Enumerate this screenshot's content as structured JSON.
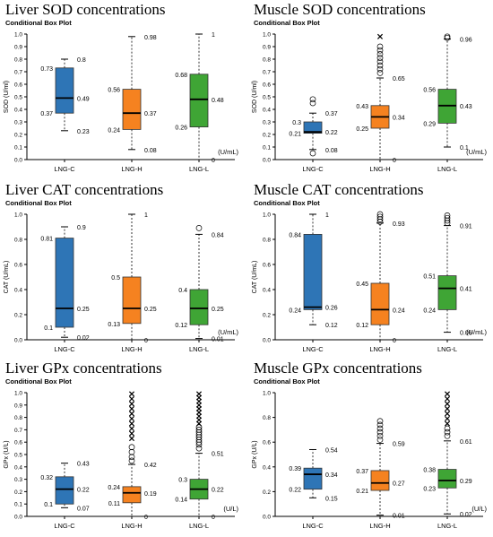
{
  "colors": {
    "LNG-C": "#2e75b6",
    "LNG-H": "#f58220",
    "LNG-L": "#3fa535"
  },
  "chart_data": [
    {
      "type": "boxplot",
      "title": "Liver SOD concentrations",
      "subtitle": "Conditional Box Plot",
      "ylabel": "SOD (U/ml)",
      "unit_label": "(U/mL)",
      "ylim": [
        0,
        1.0
      ],
      "yticks": [
        "0.0",
        "0.1",
        "0.2",
        "0.3",
        "0.4",
        "0.5",
        "0.6",
        "0.7",
        "0.8",
        "0.9",
        "1.0"
      ],
      "categories": [
        "LNG-C",
        "LNG-H",
        "LNG-L"
      ],
      "boxes": [
        {
          "q1": 0.37,
          "median": 0.49,
          "q3": 0.73,
          "whisker_low": 0.23,
          "whisker_high": 0.8,
          "outliers_o": [],
          "outliers_x": [],
          "labels": {
            "q1": "0.37",
            "median": "0.49",
            "q3": "0.73",
            "low": "0.23",
            "high": "0.8"
          }
        },
        {
          "q1": 0.24,
          "median": 0.37,
          "q3": 0.56,
          "whisker_low": 0.08,
          "whisker_high": 0.98,
          "outliers_o": [],
          "outliers_x": [],
          "labels": {
            "q1": "0.24",
            "median": "0.37",
            "q3": "0.56",
            "low": "0.08",
            "high": "0.98"
          }
        },
        {
          "q1": 0.26,
          "median": 0.48,
          "q3": 0.68,
          "whisker_low": 0.0,
          "whisker_high": 1.0,
          "outliers_o": [],
          "outliers_x": [],
          "labels": {
            "q1": "0.26",
            "median": "0.48",
            "q3": "0.68",
            "low": "0",
            "high": "1"
          }
        }
      ]
    },
    {
      "type": "boxplot",
      "title": "Muscle SOD concentrations",
      "subtitle": "Conditional Box Plot",
      "ylabel": "SOD (U/ml)",
      "unit_label": "(U/mL)",
      "ylim": [
        0,
        1.0
      ],
      "yticks": [
        "0.0",
        "0.1",
        "0.2",
        "0.3",
        "0.4",
        "0.5",
        "0.6",
        "0.7",
        "0.8",
        "0.9",
        "1.0"
      ],
      "categories": [
        "LNG-C",
        "LNG-H",
        "LNG-L"
      ],
      "boxes": [
        {
          "q1": 0.21,
          "median": 0.22,
          "q3": 0.3,
          "whisker_low": 0.08,
          "whisker_high": 0.37,
          "outliers_o": [
            0.05,
            0.45,
            0.48
          ],
          "outliers_x": [],
          "labels": {
            "q1": "0.21",
            "median": "0.22",
            "q3": "0.3",
            "low": "0.08",
            "high": "0.37"
          }
        },
        {
          "q1": 0.25,
          "median": 0.34,
          "q3": 0.43,
          "whisker_low": 0.0,
          "whisker_high": 0.65,
          "outliers_o": [
            0.69,
            0.72,
            0.75,
            0.78,
            0.81,
            0.84,
            0.87,
            0.9
          ],
          "outliers_x": [
            0.98
          ],
          "labels": {
            "q1": "0.25",
            "median": "0.34",
            "q3": "0.43",
            "low": "0",
            "high": "0.65"
          }
        },
        {
          "q1": 0.29,
          "median": 0.43,
          "q3": 0.56,
          "whisker_low": 0.1,
          "whisker_high": 0.96,
          "outliers_o": [
            0.97,
            0.98
          ],
          "outliers_x": [],
          "labels": {
            "q1": "0.29",
            "median": "0.43",
            "q3": "0.56",
            "low": "0.1",
            "high": "0.96"
          }
        }
      ]
    },
    {
      "type": "boxplot",
      "title": "Liver CAT concentrations",
      "subtitle": "Conditional Box Plot",
      "ylabel": "CAT (U/mL)",
      "unit_label": "(U/mL)",
      "ylim": [
        0,
        1.0
      ],
      "yticks": [
        "0.0",
        "0.2",
        "0.4",
        "0.6",
        "0.8",
        "1.0"
      ],
      "categories": [
        "LNG-C",
        "LNG-H",
        "LNG-L"
      ],
      "boxes": [
        {
          "q1": 0.1,
          "median": 0.25,
          "q3": 0.81,
          "whisker_low": 0.02,
          "whisker_high": 0.9,
          "outliers_o": [],
          "outliers_x": [],
          "labels": {
            "q1": "0.1",
            "median": "0.25",
            "q3": "0.81",
            "low": "0.02",
            "high": "0.9"
          }
        },
        {
          "q1": 0.13,
          "median": 0.25,
          "q3": 0.5,
          "whisker_low": 0.0,
          "whisker_high": 1.0,
          "outliers_o": [],
          "outliers_x": [],
          "labels": {
            "q1": "0.13",
            "median": "0.25",
            "q3": "0.5",
            "low": "0",
            "high": "1"
          }
        },
        {
          "q1": 0.12,
          "median": 0.25,
          "q3": 0.4,
          "whisker_low": 0.01,
          "whisker_high": 0.84,
          "outliers_o": [
            0.89
          ],
          "outliers_x": [],
          "labels": {
            "q1": "0.12",
            "median": "0.25",
            "q3": "0.4",
            "low": "0.01",
            "high": "0.84"
          }
        }
      ]
    },
    {
      "type": "boxplot",
      "title": "Muscle CAT concentrations",
      "subtitle": "Conditional Box Plot",
      "ylabel": "CAT (U/mL)",
      "unit_label": "(U/mL)",
      "ylim": [
        0,
        1.0
      ],
      "yticks": [
        "0.0",
        "0.2",
        "0.4",
        "0.6",
        "0.8",
        "1.0"
      ],
      "categories": [
        "LNG-C",
        "LNG-H",
        "LNG-L"
      ],
      "boxes": [
        {
          "q1": 0.24,
          "median": 0.26,
          "q3": 0.84,
          "whisker_low": 0.12,
          "whisker_high": 1.0,
          "outliers_o": [],
          "outliers_x": [],
          "labels": {
            "q1": "0.24",
            "median": "0.26",
            "q3": "0.84",
            "low": "0.12",
            "high": "1"
          }
        },
        {
          "q1": 0.12,
          "median": 0.24,
          "q3": 0.45,
          "whisker_low": 0.0,
          "whisker_high": 0.93,
          "outliers_o": [
            0.94,
            0.96,
            0.98,
            1.0
          ],
          "outliers_x": [],
          "labels": {
            "q1": "0.12",
            "median": "0.24",
            "q3": "0.45",
            "low": "0",
            "high": "0.93"
          }
        },
        {
          "q1": 0.24,
          "median": 0.41,
          "q3": 0.51,
          "whisker_low": 0.06,
          "whisker_high": 0.91,
          "outliers_o": [
            0.93,
            0.95,
            0.97,
            0.99
          ],
          "outliers_x": [],
          "labels": {
            "q1": "0.24",
            "median": "0.41",
            "q3": "0.51",
            "low": "0.06",
            "high": "0.91"
          }
        }
      ]
    },
    {
      "type": "boxplot",
      "title": "Liver GPx concentrations",
      "subtitle": "Conditional Box Plot",
      "ylabel": "GPx (U/L)",
      "unit_label": "(U/L)",
      "ylim": [
        0,
        1.0
      ],
      "yticks": [
        "0.0",
        "0.1",
        "0.2",
        "0.3",
        "0.4",
        "0.5",
        "0.6",
        "0.7",
        "0.8",
        "0.9",
        "1.0"
      ],
      "categories": [
        "LNG-C",
        "LNG-H",
        "LNG-L"
      ],
      "boxes": [
        {
          "q1": 0.1,
          "median": 0.22,
          "q3": 0.32,
          "whisker_low": 0.07,
          "whisker_high": 0.43,
          "outliers_o": [],
          "outliers_x": [],
          "labels": {
            "q1": "0.1",
            "median": "0.22",
            "q3": "0.32",
            "low": "0.07",
            "high": "0.43"
          }
        },
        {
          "q1": 0.11,
          "median": 0.19,
          "q3": 0.24,
          "whisker_low": 0.0,
          "whisker_high": 0.42,
          "outliers_o": [
            0.45,
            0.48,
            0.52,
            0.56
          ],
          "outliers_x": [
            0.63,
            0.67,
            0.71,
            0.75,
            0.79,
            0.83,
            0.87,
            0.91,
            0.95,
            0.99
          ],
          "labels": {
            "q1": "0.11",
            "median": "0.19",
            "q3": "0.24",
            "low": "0",
            "high": "0.42"
          }
        },
        {
          "q1": 0.14,
          "median": 0.22,
          "q3": 0.3,
          "whisker_low": 0.0,
          "whisker_high": 0.51,
          "outliers_o": [
            0.55,
            0.58,
            0.6,
            0.62,
            0.64,
            0.66,
            0.68,
            0.7,
            0.72
          ],
          "outliers_x": [
            0.75,
            0.78,
            0.81,
            0.84,
            0.87,
            0.9,
            0.93,
            0.96,
            0.99
          ],
          "labels": {
            "q1": "0.14",
            "median": "0.22",
            "q3": "0.3",
            "low": "0",
            "high": "0.51"
          }
        }
      ]
    },
    {
      "type": "boxplot",
      "title": "Muscle GPx concentrations",
      "subtitle": "Conditional Box Plot",
      "ylabel": "GPx (U/L)",
      "unit_label": "(U/L)",
      "ylim": [
        0,
        1.0
      ],
      "yticks": [
        "0.0",
        "0.2",
        "0.4",
        "0.6",
        "0.8",
        "1.0"
      ],
      "categories": [
        "LNG-C",
        "LNG-H",
        "LNG-L"
      ],
      "boxes": [
        {
          "q1": 0.22,
          "median": 0.34,
          "q3": 0.39,
          "whisker_low": 0.15,
          "whisker_high": 0.54,
          "outliers_o": [],
          "outliers_x": [],
          "labels": {
            "q1": "0.22",
            "median": "0.34",
            "q3": "0.39",
            "low": "0.15",
            "high": "0.54"
          }
        },
        {
          "q1": 0.21,
          "median": 0.27,
          "q3": 0.37,
          "whisker_low": 0.01,
          "whisker_high": 0.59,
          "outliers_o": [
            0.62,
            0.65,
            0.68,
            0.71,
            0.74,
            0.77
          ],
          "outliers_x": [],
          "labels": {
            "q1": "0.21",
            "median": "0.27",
            "q3": "0.37",
            "low": "0.01",
            "high": "0.59"
          }
        },
        {
          "q1": 0.23,
          "median": 0.29,
          "q3": 0.38,
          "whisker_low": 0.02,
          "whisker_high": 0.61,
          "outliers_o": [
            0.65,
            0.68,
            0.71
          ],
          "outliers_x": [
            0.75,
            0.79,
            0.83,
            0.87,
            0.91,
            0.95,
            0.99
          ],
          "labels": {
            "q1": "0.23",
            "median": "0.29",
            "q3": "0.38",
            "low": "0.02",
            "high": "0.61"
          }
        }
      ]
    }
  ]
}
